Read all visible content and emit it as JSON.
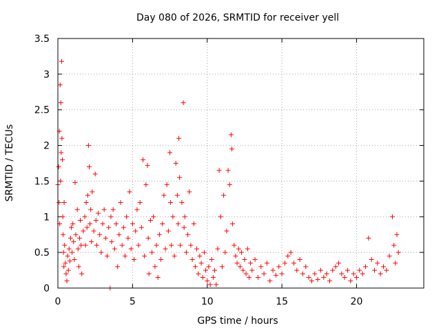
{
  "chart_data": {
    "type": "scatter",
    "title": "Day 080 of 2026, SRMTID for receiver yell",
    "xlabel": "GPS time / hours",
    "ylabel": "SRMTID / TECUs",
    "xlim": [
      0,
      24.5
    ],
    "ylim": [
      0,
      3.5
    ],
    "xticks": [
      0,
      5,
      10,
      15,
      20
    ],
    "xtick_labels": [
      "0",
      "5",
      "10",
      "15",
      "20"
    ],
    "yticks": [
      0,
      0.5,
      1,
      1.5,
      2,
      2.5,
      3,
      3.5
    ],
    "ytick_labels": [
      "0",
      "0.5",
      "1",
      "1.5",
      "2",
      "2.5",
      "3",
      "3.5"
    ],
    "grid": true,
    "marker": "+",
    "color": "#ff0000",
    "series": [
      {
        "name": "SRMTID",
        "points": [
          [
            0.0,
            1.45
          ],
          [
            0.05,
            1.7
          ],
          [
            0.08,
            1.2
          ],
          [
            0.1,
            2.2
          ],
          [
            0.12,
            0.9
          ],
          [
            0.15,
            2.85
          ],
          [
            0.18,
            1.5
          ],
          [
            0.2,
            2.6
          ],
          [
            0.22,
            1.9
          ],
          [
            0.25,
            3.18
          ],
          [
            0.27,
            2.1
          ],
          [
            0.3,
            1.8
          ],
          [
            0.33,
            1.0
          ],
          [
            0.35,
            0.75
          ],
          [
            0.38,
            0.5
          ],
          [
            0.4,
            0.3
          ],
          [
            0.42,
            1.2
          ],
          [
            0.45,
            0.6
          ],
          [
            0.5,
            0.35
          ],
          [
            0.55,
            0.2
          ],
          [
            0.6,
            0.1
          ],
          [
            0.65,
            0.45
          ],
          [
            0.7,
            0.25
          ],
          [
            0.75,
            0.55
          ],
          [
            0.8,
            0.38
          ],
          [
            0.85,
            0.7
          ],
          [
            0.9,
            0.85
          ],
          [
            0.95,
            0.5
          ],
          [
            1.0,
            0.9
          ],
          [
            1.05,
            0.65
          ],
          [
            1.1,
            0.4
          ],
          [
            1.15,
            1.48
          ],
          [
            1.2,
            0.75
          ],
          [
            1.3,
            1.1
          ],
          [
            1.35,
            0.55
          ],
          [
            1.4,
            0.3
          ],
          [
            1.45,
            0.7
          ],
          [
            1.5,
            0.95
          ],
          [
            1.55,
            0.6
          ],
          [
            1.6,
            0.2
          ],
          [
            1.7,
            0.8
          ],
          [
            1.8,
            1.0
          ],
          [
            1.85,
            0.6
          ],
          [
            1.9,
            1.2
          ],
          [
            1.95,
            0.85
          ],
          [
            2.0,
            1.3
          ],
          [
            2.05,
            2.0
          ],
          [
            2.1,
            1.7
          ],
          [
            2.15,
            0.9
          ],
          [
            2.2,
            1.1
          ],
          [
            2.25,
            0.65
          ],
          [
            2.3,
            1.35
          ],
          [
            2.4,
            0.8
          ],
          [
            2.5,
            1.6
          ],
          [
            2.55,
            0.95
          ],
          [
            2.6,
            0.6
          ],
          [
            2.7,
            1.05
          ],
          [
            2.8,
            0.75
          ],
          [
            2.9,
            0.5
          ],
          [
            3.0,
            0.9
          ],
          [
            3.1,
            1.1
          ],
          [
            3.2,
            0.7
          ],
          [
            3.3,
            0.45
          ],
          [
            3.4,
            0.85
          ],
          [
            3.5,
            0.0
          ],
          [
            3.55,
            1.0
          ],
          [
            3.6,
            0.65
          ],
          [
            3.7,
            1.1
          ],
          [
            3.8,
            0.55
          ],
          [
            3.9,
            0.9
          ],
          [
            4.0,
            0.3
          ],
          [
            4.1,
            0.75
          ],
          [
            4.2,
            1.2
          ],
          [
            4.3,
            0.6
          ],
          [
            4.4,
            0.85
          ],
          [
            4.5,
            0.45
          ],
          [
            4.6,
            1.0
          ],
          [
            4.7,
            0.7
          ],
          [
            4.8,
            1.35
          ],
          [
            4.9,
            0.55
          ],
          [
            5.0,
            0.9
          ],
          [
            5.1,
            0.4
          ],
          [
            5.2,
            0.8
          ],
          [
            5.3,
            1.1
          ],
          [
            5.4,
            0.6
          ],
          [
            5.5,
            1.2
          ],
          [
            5.6,
            0.85
          ],
          [
            5.7,
            1.8
          ],
          [
            5.8,
            0.45
          ],
          [
            5.9,
            1.45
          ],
          [
            6.0,
            1.72
          ],
          [
            6.05,
            0.7
          ],
          [
            6.1,
            0.2
          ],
          [
            6.2,
            0.95
          ],
          [
            6.3,
            0.5
          ],
          [
            6.4,
            1.0
          ],
          [
            6.5,
            0.3
          ],
          [
            6.6,
            0.6
          ],
          [
            6.7,
            0.15
          ],
          [
            6.8,
            0.75
          ],
          [
            6.9,
            0.4
          ],
          [
            7.0,
            0.9
          ],
          [
            7.1,
            1.3
          ],
          [
            7.2,
            0.55
          ],
          [
            7.3,
            1.45
          ],
          [
            7.4,
            0.8
          ],
          [
            7.5,
            1.9
          ],
          [
            7.55,
            1.2
          ],
          [
            7.6,
            0.6
          ],
          [
            7.7,
            1.0
          ],
          [
            7.8,
            0.45
          ],
          [
            7.9,
            1.75
          ],
          [
            8.0,
            1.3
          ],
          [
            8.05,
            0.9
          ],
          [
            8.1,
            2.1
          ],
          [
            8.15,
            1.55
          ],
          [
            8.2,
            0.6
          ],
          [
            8.3,
            1.2
          ],
          [
            8.4,
            2.6
          ],
          [
            8.45,
            0.85
          ],
          [
            8.5,
            1.0
          ],
          [
            8.6,
            0.5
          ],
          [
            8.7,
            0.75
          ],
          [
            8.8,
            1.35
          ],
          [
            8.9,
            0.6
          ],
          [
            9.0,
            0.4
          ],
          [
            9.1,
            0.9
          ],
          [
            9.2,
            0.3
          ],
          [
            9.3,
            0.55
          ],
          [
            9.4,
            0.2
          ],
          [
            9.5,
            0.45
          ],
          [
            9.6,
            0.35
          ],
          [
            9.7,
            0.15
          ],
          [
            9.8,
            0.5
          ],
          [
            9.9,
            0.25
          ],
          [
            10.0,
            0.1
          ],
          [
            10.1,
            0.3
          ],
          [
            10.2,
            0.05
          ],
          [
            10.3,
            0.4
          ],
          [
            10.4,
            0.15
          ],
          [
            10.5,
            0.25
          ],
          [
            10.6,
            0.05
          ],
          [
            10.7,
            0.55
          ],
          [
            10.8,
            1.65
          ],
          [
            10.9,
            1.0
          ],
          [
            11.0,
            0.3
          ],
          [
            11.1,
            1.3
          ],
          [
            11.2,
            0.5
          ],
          [
            11.3,
            0.8
          ],
          [
            11.4,
            1.65
          ],
          [
            11.5,
            1.45
          ],
          [
            11.6,
            2.15
          ],
          [
            11.65,
            1.95
          ],
          [
            11.7,
            0.9
          ],
          [
            11.8,
            0.6
          ],
          [
            11.9,
            0.45
          ],
          [
            12.0,
            0.35
          ],
          [
            12.1,
            0.55
          ],
          [
            12.2,
            0.3
          ],
          [
            12.3,
            0.5
          ],
          [
            12.4,
            0.25
          ],
          [
            12.5,
            0.4
          ],
          [
            12.6,
            0.2
          ],
          [
            12.7,
            0.55
          ],
          [
            12.8,
            0.15
          ],
          [
            12.9,
            0.35
          ],
          [
            13.0,
            0.25
          ],
          [
            13.2,
            0.4
          ],
          [
            13.4,
            0.15
          ],
          [
            13.6,
            0.3
          ],
          [
            13.8,
            0.2
          ],
          [
            14.0,
            0.35
          ],
          [
            14.2,
            0.1
          ],
          [
            14.4,
            0.25
          ],
          [
            14.6,
            0.18
          ],
          [
            14.8,
            0.3
          ],
          [
            15.0,
            0.2
          ],
          [
            15.2,
            0.35
          ],
          [
            15.4,
            0.45
          ],
          [
            15.6,
            0.5
          ],
          [
            15.8,
            0.35
          ],
          [
            16.0,
            0.25
          ],
          [
            16.2,
            0.4
          ],
          [
            16.4,
            0.2
          ],
          [
            16.6,
            0.3
          ],
          [
            16.8,
            0.15
          ],
          [
            17.0,
            0.1
          ],
          [
            17.2,
            0.2
          ],
          [
            17.4,
            0.12
          ],
          [
            17.6,
            0.25
          ],
          [
            17.8,
            0.15
          ],
          [
            18.0,
            0.2
          ],
          [
            18.2,
            0.1
          ],
          [
            18.4,
            0.25
          ],
          [
            18.6,
            0.3
          ],
          [
            18.8,
            0.35
          ],
          [
            19.0,
            0.2
          ],
          [
            19.2,
            0.15
          ],
          [
            19.4,
            0.25
          ],
          [
            19.6,
            0.1
          ],
          [
            19.8,
            0.2
          ],
          [
            20.0,
            0.15
          ],
          [
            20.2,
            0.25
          ],
          [
            20.4,
            0.2
          ],
          [
            20.6,
            0.3
          ],
          [
            20.8,
            0.7
          ],
          [
            21.0,
            0.4
          ],
          [
            21.2,
            0.25
          ],
          [
            21.4,
            0.35
          ],
          [
            21.6,
            0.2
          ],
          [
            21.8,
            0.3
          ],
          [
            22.0,
            0.25
          ],
          [
            22.2,
            0.45
          ],
          [
            22.4,
            1.0
          ],
          [
            22.5,
            0.6
          ],
          [
            22.6,
            0.35
          ],
          [
            22.7,
            0.75
          ],
          [
            22.8,
            0.5
          ]
        ]
      }
    ]
  }
}
